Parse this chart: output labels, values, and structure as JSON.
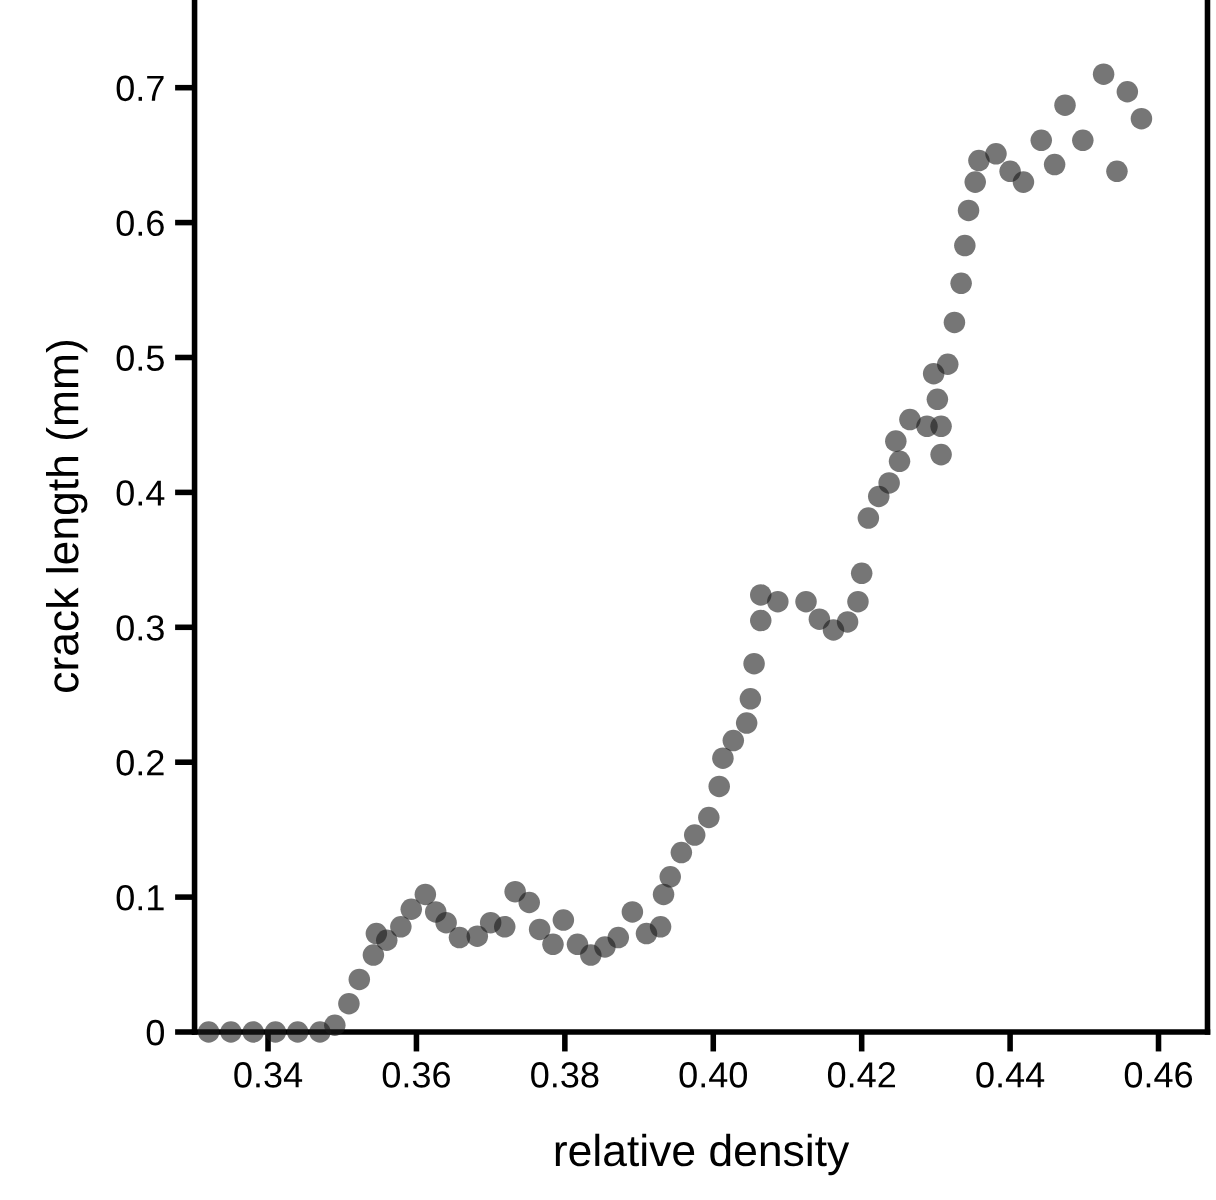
{
  "chart_data": {
    "type": "scatter",
    "xlabel": "relative density",
    "ylabel": "crack length (mm)",
    "x": [
      0.332,
      0.335,
      0.338,
      0.341,
      0.344,
      0.347,
      0.349,
      0.3509,
      0.3523,
      0.3542,
      0.3546,
      0.356,
      0.3579,
      0.3593,
      0.3612,
      0.3626,
      0.364,
      0.3658,
      0.3682,
      0.37,
      0.3719,
      0.3733,
      0.3752,
      0.3766,
      0.3784,
      0.3798,
      0.3817,
      0.3835,
      0.3854,
      0.3872,
      0.3891,
      0.391,
      0.3929,
      0.3933,
      0.3942,
      0.3957,
      0.3975,
      0.3994,
      0.4008,
      0.4013,
      0.4027,
      0.4045,
      0.405,
      0.4055,
      0.4064,
      0.4064,
      0.4087,
      0.4125,
      0.4143,
      0.4162,
      0.4181,
      0.4195,
      0.42,
      0.4209,
      0.4223,
      0.4237,
      0.4251,
      0.4246,
      0.4265,
      0.4288,
      0.4307,
      0.4307,
      0.4302,
      0.4297,
      0.4316,
      0.4325,
      0.4334,
      0.4339,
      0.4344,
      0.4353,
      0.4358,
      0.4381,
      0.44,
      0.4418,
      0.4442,
      0.446,
      0.4474,
      0.4498,
      0.4526,
      0.4544,
      0.4558,
      0.4577
    ],
    "values": [
      0,
      0,
      0,
      0,
      0,
      0,
      0.005,
      0.021,
      0.039,
      0.057,
      0.073,
      0.068,
      0.078,
      0.091,
      0.102,
      0.089,
      0.081,
      0.07,
      0.071,
      0.081,
      0.078,
      0.104,
      0.096,
      0.076,
      0.065,
      0.083,
      0.065,
      0.057,
      0.063,
      0.07,
      0.089,
      0.073,
      0.078,
      0.102,
      0.115,
      0.133,
      0.146,
      0.159,
      0.182,
      0.203,
      0.216,
      0.229,
      0.247,
      0.273,
      0.305,
      0.324,
      0.319,
      0.319,
      0.306,
      0.298,
      0.304,
      0.319,
      0.34,
      0.381,
      0.397,
      0.407,
      0.423,
      0.438,
      0.454,
      0.449,
      0.449,
      0.428,
      0.469,
      0.488,
      0.495,
      0.526,
      0.555,
      0.583,
      0.609,
      0.63,
      0.646,
      0.651,
      0.638,
      0.63,
      0.661,
      0.643,
      0.687,
      0.661,
      0.71,
      0.638,
      0.697,
      0.677
    ],
    "color": "#1a1a1a",
    "marker": "circle",
    "xlim": [
      0.3301,
      0.4666
    ],
    "ylim": [
      0,
      0.765
    ],
    "xticks": [
      0.34,
      0.36,
      0.38,
      {
        "value": 0.4,
        "label": "0.40"
      },
      0.42,
      0.44,
      0.46
    ],
    "yticks": [
      0,
      0.1,
      0.2,
      0.3,
      0.4,
      0.5,
      0.6,
      0.7
    ],
    "grid": false,
    "legend": false
  }
}
